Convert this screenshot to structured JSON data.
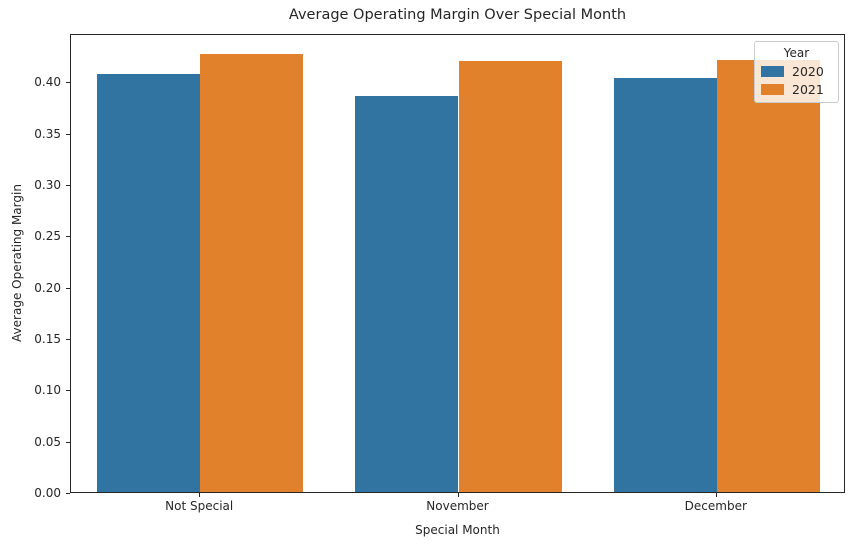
{
  "chart_data": {
    "type": "bar",
    "title": "Average Operating Margin Over Special Month",
    "xlabel": "Special Month",
    "ylabel": "Average Operating Margin",
    "categories": [
      "Not Special",
      "November",
      "December"
    ],
    "series": [
      {
        "name": "2020",
        "color": "#3274a1",
        "values": [
          0.407,
          0.386,
          0.403
        ]
      },
      {
        "name": "2021",
        "color": "#e1812c",
        "values": [
          0.427,
          0.42,
          0.421
        ]
      }
    ],
    "legend_title": "Year",
    "legend_position": "upper right",
    "ylim": [
      0,
      0.447
    ],
    "yticks": [
      0.0,
      0.05,
      0.1,
      0.15,
      0.2,
      0.25,
      0.3,
      0.35,
      0.4
    ],
    "ytick_labels": [
      "0.00",
      "0.05",
      "0.10",
      "0.15",
      "0.20",
      "0.25",
      "0.30",
      "0.35",
      "0.40"
    ],
    "grid": false,
    "bar_group_width": 0.8
  }
}
